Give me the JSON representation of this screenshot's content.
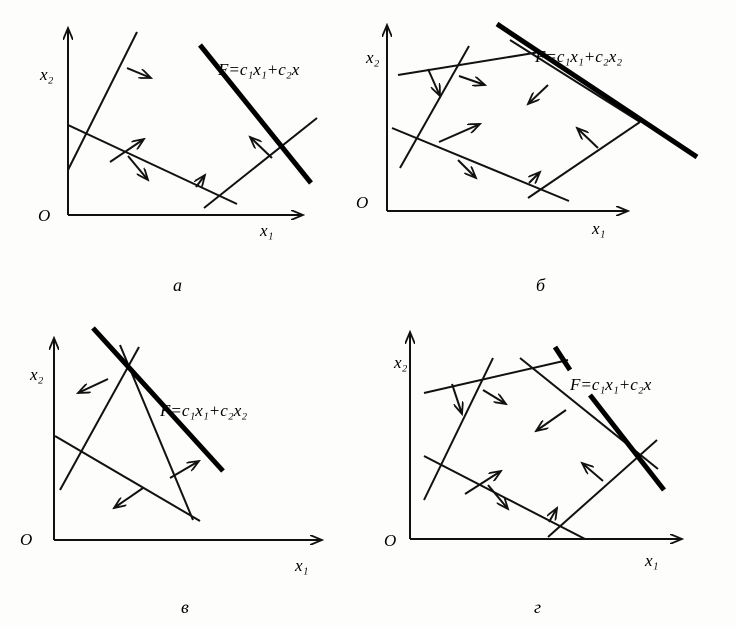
{
  "panels": [
    {
      "id": "a",
      "caption": "а",
      "x_label": "x₁",
      "y_label": "x₂",
      "origin": "O",
      "objective_label": "F=c₁x₁+c₂x"
    },
    {
      "id": "b",
      "caption": "б",
      "x_label": "x₁",
      "y_label": "x₂",
      "origin": "O",
      "objective_label": "F=c₁x₁+c₂x₂"
    },
    {
      "id": "v",
      "caption": "в",
      "x_label": "x₁",
      "y_label": "x₂",
      "origin": "O",
      "objective_label": "F=c₁x₁+c₂x₂"
    },
    {
      "id": "g",
      "caption": "г",
      "x_label": "x₁",
      "y_label": "x₂",
      "origin": "O",
      "objective_label": "F=c₁x₁+c₂x"
    }
  ]
}
